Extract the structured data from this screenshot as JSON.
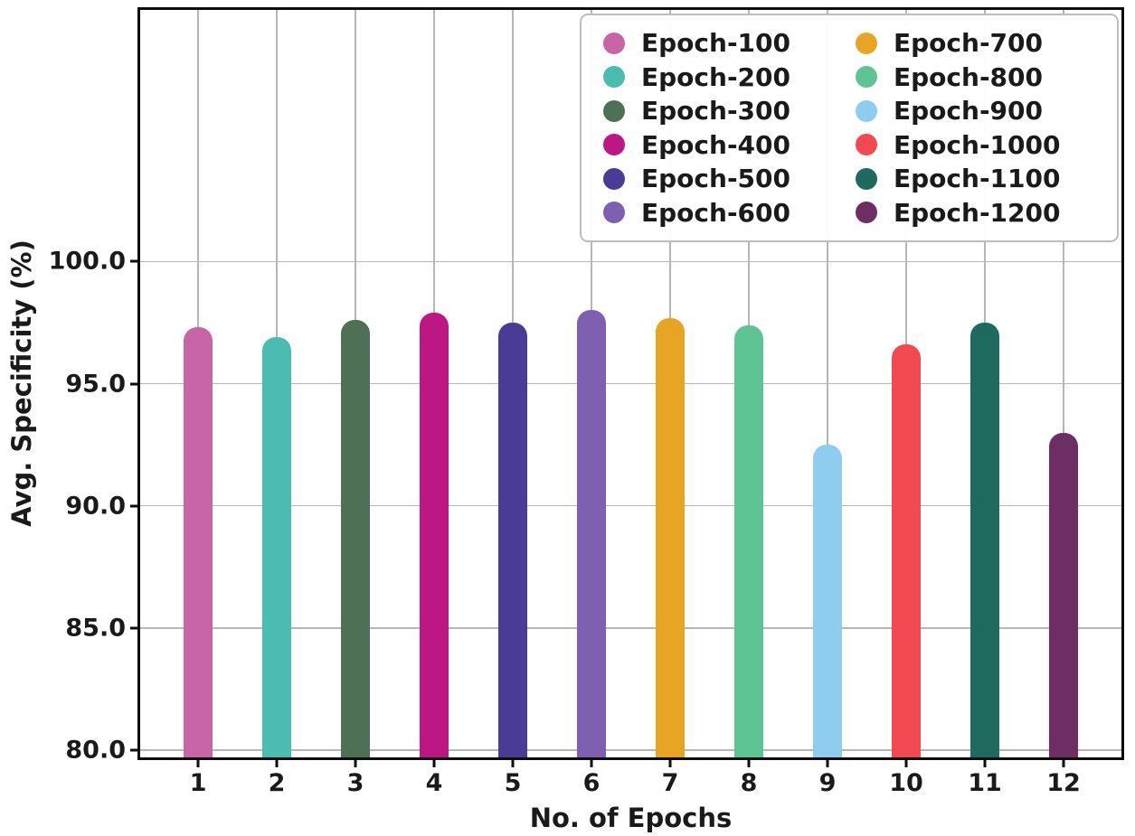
{
  "chart_data": {
    "type": "bar",
    "title": "",
    "xlabel": "No. of Epochs",
    "ylabel": "Avg. Specificity (%)",
    "categories": [
      "1",
      "2",
      "3",
      "4",
      "5",
      "6",
      "7",
      "8",
      "9",
      "10",
      "11",
      "12"
    ],
    "series": [
      {
        "name": "Epoch-100",
        "x": "1",
        "value": 97.3,
        "color": "#c765a6"
      },
      {
        "name": "Epoch-200",
        "x": "2",
        "value": 96.9,
        "color": "#4cbcb0"
      },
      {
        "name": "Epoch-300",
        "x": "3",
        "value": 97.6,
        "color": "#4e7055"
      },
      {
        "name": "Epoch-400",
        "x": "4",
        "value": 97.9,
        "color": "#bc1782"
      },
      {
        "name": "Epoch-500",
        "x": "5",
        "value": 97.5,
        "color": "#4a3b96"
      },
      {
        "name": "Epoch-600",
        "x": "6",
        "value": 98.0,
        "color": "#7e5fb0"
      },
      {
        "name": "Epoch-700",
        "x": "7",
        "value": 97.7,
        "color": "#e7a523"
      },
      {
        "name": "Epoch-800",
        "x": "8",
        "value": 97.4,
        "color": "#5fc494"
      },
      {
        "name": "Epoch-900",
        "x": "9",
        "value": 92.5,
        "color": "#8ecdf0"
      },
      {
        "name": "Epoch-1000",
        "x": "10",
        "value": 96.6,
        "color": "#f24a50"
      },
      {
        "name": "Epoch-1100",
        "x": "11",
        "value": 97.5,
        "color": "#1e6a5e"
      },
      {
        "name": "Epoch-1200",
        "x": "12",
        "value": 93.0,
        "color": "#6d2f63"
      }
    ],
    "yticks": [
      {
        "value": 80,
        "label": "80.0"
      },
      {
        "value": 85,
        "label": "85.0"
      },
      {
        "value": 90,
        "label": "90.0"
      },
      {
        "value": 95,
        "label": "95.0"
      },
      {
        "value": 100,
        "label": "100.0"
      }
    ],
    "ylim": [
      79.7,
      110.3
    ],
    "grid": "on",
    "legend_position": "upper-right",
    "legend_columns": 2
  }
}
